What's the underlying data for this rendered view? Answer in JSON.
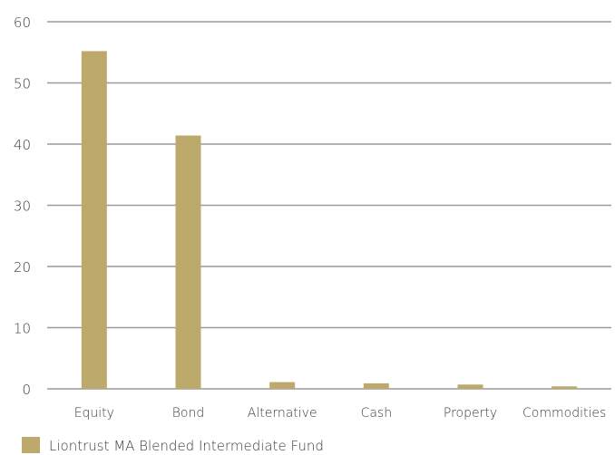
{
  "chart_data": {
    "type": "bar",
    "categories": [
      "Equity",
      "Bond",
      "Alternative",
      "Cash",
      "Property",
      "Commodities"
    ],
    "series": [
      {
        "name": "Liontrust MA Blended Intermediate Fund",
        "values": [
          55.2,
          41.4,
          1.1,
          0.9,
          0.7,
          0.4
        ]
      }
    ],
    "ylim": [
      0,
      60
    ],
    "yticks": [
      0,
      10,
      20,
      30,
      40,
      50,
      60
    ],
    "grid": true,
    "legend": "bottom-left",
    "colors": {
      "bar": "#bca96b",
      "grid": "#9a9a9a",
      "text": "#3a3a3a"
    }
  }
}
